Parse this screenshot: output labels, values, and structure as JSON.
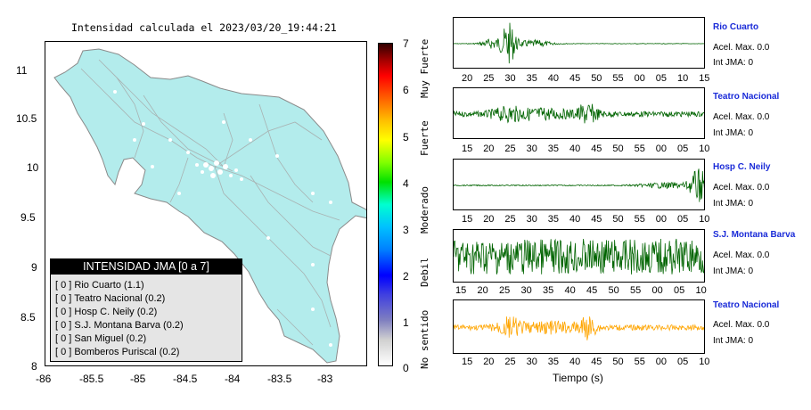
{
  "map": {
    "title": "Intensidad calculada el 2023/03/20_19:44:21",
    "y_ticks": [
      "11",
      "10.5",
      "10",
      "9.5",
      "9",
      "8.5",
      "8"
    ],
    "x_ticks": [
      "-86",
      "-85.5",
      "-85",
      "-84.5",
      "-84",
      "-83.5",
      "-83"
    ],
    "land_color": "#b3ecec"
  },
  "legend": {
    "header": "INTENSIDAD JMA [0 a 7]",
    "rows": [
      "[ 0 ]  Rio Cuarto (1.1)",
      "[ 0 ]  Teatro Nacional (0.2)",
      "[ 0 ]  Hosp C. Neily (0.2)",
      "[ 0 ]  S.J. Montana Barva (0.2)",
      "[ 0 ]  San Miguel (0.2)",
      "[ 0 ]  Bomberos Puriscal (0.2)"
    ]
  },
  "colorbar": {
    "ticks": [
      "7",
      "6",
      "5",
      "4",
      "3",
      "2",
      "1",
      "0"
    ],
    "labels": [
      "Muy Fuerte",
      "Fuerte",
      "Moderado",
      "Debil",
      "No sentido"
    ]
  },
  "panels": [
    {
      "station": "Rio Cuarto",
      "acel": "Acel. Max. 0.0",
      "int": "Int JMA: 0",
      "ticks": [
        "20",
        "25",
        "30",
        "35",
        "40",
        "45",
        "50",
        "55",
        "00",
        "05",
        "10",
        "15"
      ],
      "color": "#006400"
    },
    {
      "station": "Teatro Nacional",
      "acel": "Acel. Max. 0.0",
      "int": "Int JMA: 0",
      "ticks": [
        "15",
        "20",
        "25",
        "30",
        "35",
        "40",
        "45",
        "50",
        "55",
        "00",
        "05",
        "10"
      ],
      "color": "#006400"
    },
    {
      "station": "Hosp C. Neily",
      "acel": "Acel. Max. 0.0",
      "int": "Int JMA: 0",
      "ticks": [
        "15",
        "20",
        "25",
        "30",
        "35",
        "40",
        "45",
        "50",
        "55",
        "00",
        "05",
        "10"
      ],
      "color": "#006400"
    },
    {
      "station": "S.J. Montana Barva",
      "acel": "Acel. Max. 0.0",
      "int": "Int JMA: 0",
      "ticks": [
        "15",
        "20",
        "25",
        "30",
        "35",
        "40",
        "45",
        "50",
        "55",
        "00",
        "05",
        "10"
      ],
      "color": "#006400"
    },
    {
      "station": "Teatro Nacional",
      "acel": "Acel. Max. 0.0",
      "int": "Int JMA: 0",
      "ticks": [
        "15",
        "20",
        "25",
        "30",
        "35",
        "40",
        "45",
        "50",
        "55",
        "00",
        "05",
        "10"
      ],
      "color": "#ffa500"
    }
  ],
  "xaxis_title": "Tiempo (s)"
}
